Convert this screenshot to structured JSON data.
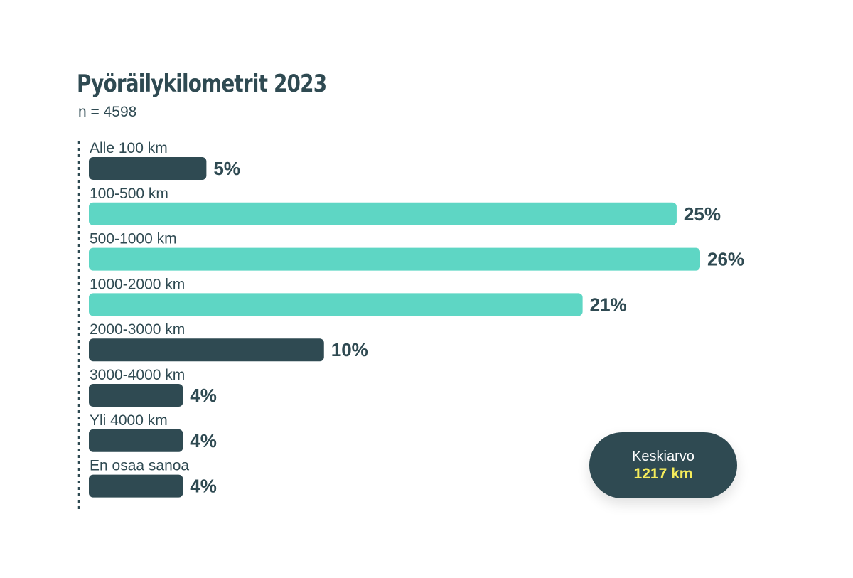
{
  "chart_data": {
    "type": "bar",
    "orientation": "horizontal",
    "title": "Pyöräilykilometrit 2023",
    "subtitle": "n = 4598",
    "categories": [
      "Alle 100 km",
      "100-500 km",
      "500-1000 km",
      "1000-2000 km",
      "2000-3000 km",
      "3000-4000 km",
      "Yli 4000 km",
      "En osaa sanoa"
    ],
    "values": [
      5,
      25,
      26,
      21,
      10,
      4,
      4,
      4
    ],
    "value_labels": [
      "5%",
      "25%",
      "26%",
      "21%",
      "10%",
      "4%",
      "4%",
      "4%"
    ],
    "unit": "%",
    "highlighted": [
      false,
      true,
      true,
      true,
      false,
      false,
      false,
      false
    ],
    "colors": {
      "default": "#2f4a52",
      "highlight": "#5ed6c4",
      "text": "#2f4a52"
    },
    "xlim": [
      0,
      26
    ],
    "grid": false,
    "legend": "none"
  },
  "callout": {
    "label": "Keskiarvo",
    "value": "1217 km",
    "value_color": "#f5ec5b"
  }
}
